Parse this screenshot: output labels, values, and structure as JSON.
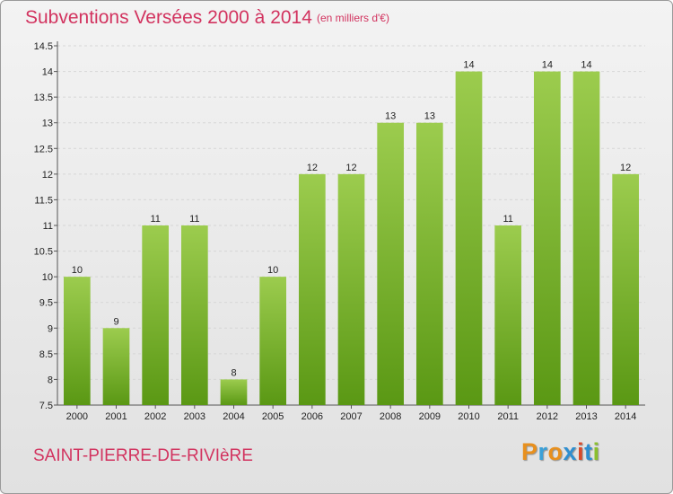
{
  "title": "Subventions Versées 2000 à 2014",
  "subtitle": "(en milliers d'€)",
  "place": "SAINT-PIERRE-DE-RIVIèRE",
  "logo": {
    "text": "Proxiti",
    "colors": [
      "#e8901e",
      "#3aa0d8",
      "#e8901e",
      "#2f8fd0",
      "#d94a2a",
      "#2f8fd0",
      "#8bbf2e"
    ]
  },
  "colors": {
    "title": "#d2335f",
    "bar_top": "#9ccc4e",
    "bar_bottom": "#5a9814",
    "grid": "#d6d6d6"
  },
  "chart_data": {
    "type": "bar",
    "categories": [
      "2000",
      "2001",
      "2002",
      "2003",
      "2004",
      "2005",
      "2006",
      "2007",
      "2008",
      "2009",
      "2010",
      "2011",
      "2012",
      "2013",
      "2014"
    ],
    "values": [
      10,
      9,
      11,
      11,
      8,
      10,
      12,
      12,
      13,
      13,
      14,
      11,
      14,
      14,
      12
    ],
    "title": "Subventions Versées 2000 à 2014",
    "ylim": [
      7.5,
      14.5
    ],
    "yticks": [
      "7.5",
      "8",
      "8.5",
      "9",
      "9.5",
      "10",
      "10.5",
      "11",
      "11.5",
      "12",
      "12.5",
      "13",
      "13.5",
      "14",
      "14.5"
    ],
    "grid": true
  }
}
